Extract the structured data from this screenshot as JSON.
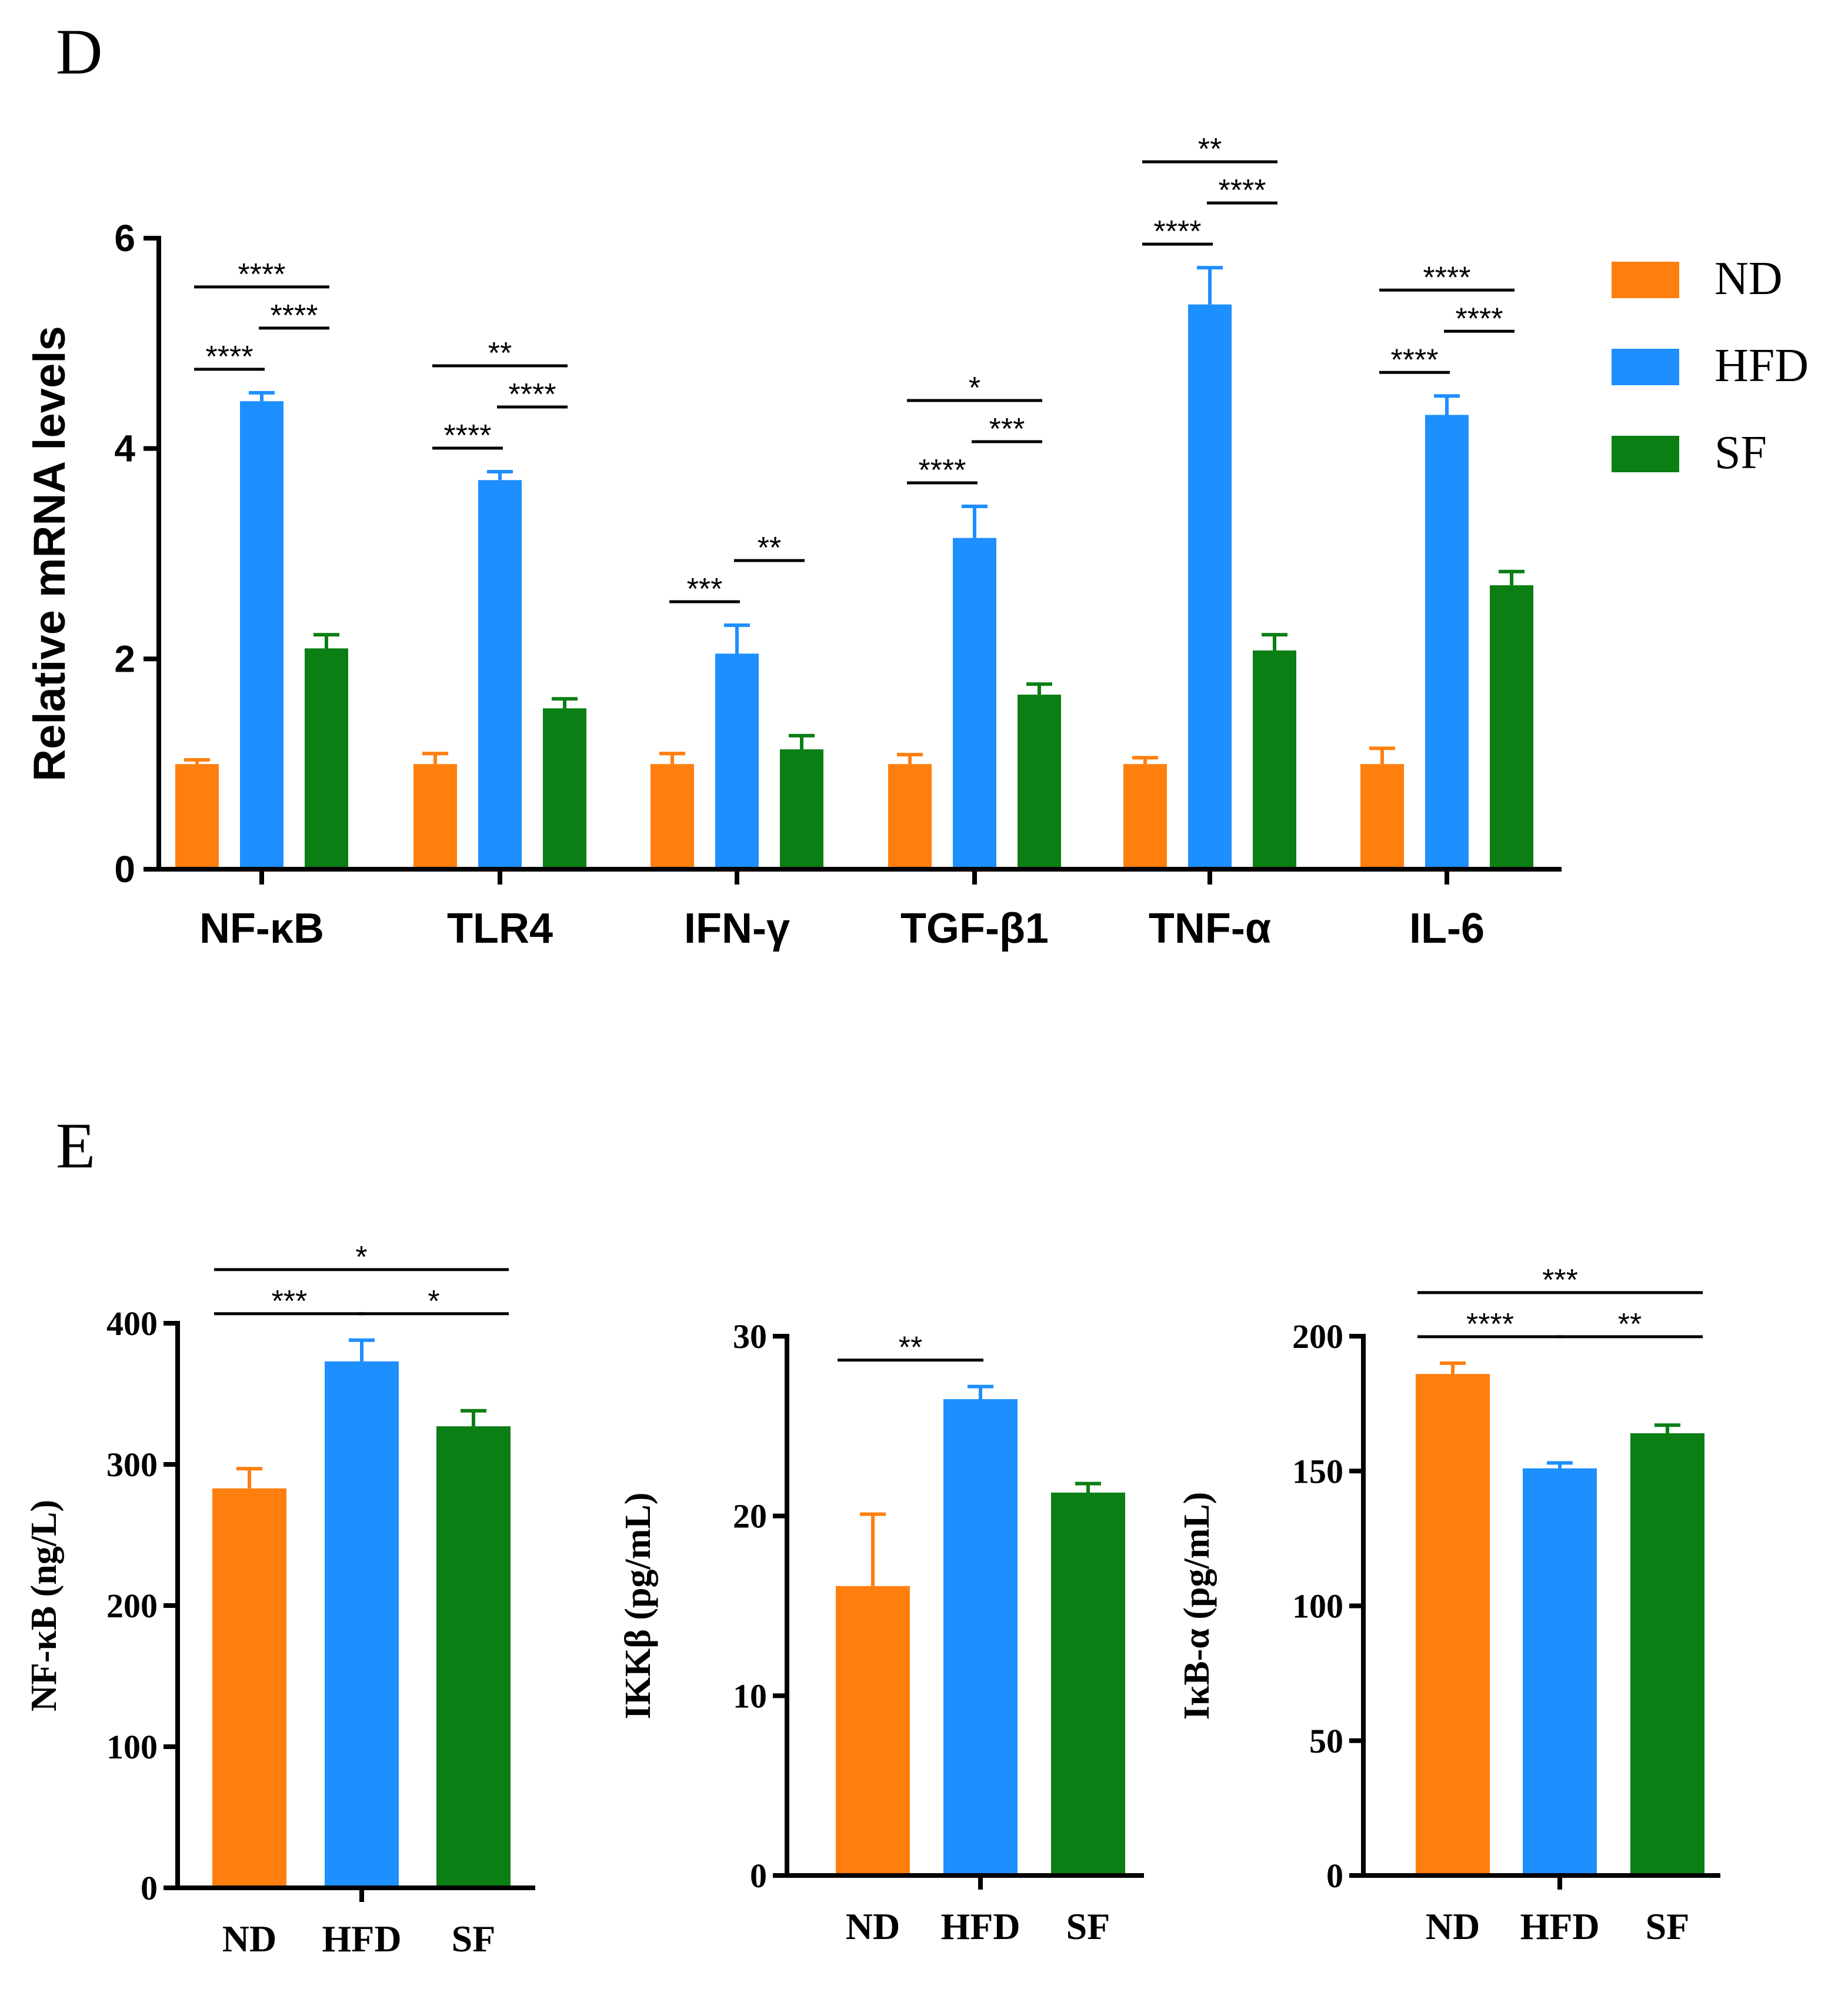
{
  "colors": {
    "ND": "#FF7F0E",
    "HFD": "#1E8FFF",
    "SF": "#0B7E14"
  },
  "chart_data": [
    {
      "panel": "D",
      "type": "bar",
      "ylabel": "Relative mRNA levels",
      "xlabel": "",
      "ylim": [
        0,
        6
      ],
      "yticks": [
        0,
        2,
        4,
        6
      ],
      "categories": [
        "NF-κB",
        "TLR4",
        "IFN-γ",
        "TGF-β1",
        "TNF-α",
        "IL-6"
      ],
      "legend": {
        "position": "top-right",
        "entries": [
          "ND",
          "HFD",
          "SF"
        ]
      },
      "series": [
        {
          "name": "ND",
          "values": [
            1.0,
            1.0,
            1.0,
            1.0,
            1.0,
            1.0
          ],
          "errors": [
            0.04,
            0.1,
            0.1,
            0.09,
            0.06,
            0.15
          ]
        },
        {
          "name": "HFD",
          "values": [
            4.45,
            3.7,
            2.05,
            3.15,
            5.37,
            4.32
          ],
          "errors": [
            0.08,
            0.08,
            0.27,
            0.3,
            0.35,
            0.18
          ]
        },
        {
          "name": "SF",
          "values": [
            2.1,
            1.53,
            1.14,
            1.66,
            2.08,
            2.7
          ],
          "errors": [
            0.13,
            0.09,
            0.13,
            0.1,
            0.15,
            0.13
          ]
        }
      ],
      "significance": [
        {
          "category": 0,
          "from": "ND",
          "to": "HFD",
          "label": "****"
        },
        {
          "category": 0,
          "from": "HFD",
          "to": "SF",
          "label": "****"
        },
        {
          "category": 0,
          "from": "ND",
          "to": "SF",
          "label": "****"
        },
        {
          "category": 1,
          "from": "ND",
          "to": "HFD",
          "label": "****"
        },
        {
          "category": 1,
          "from": "HFD",
          "to": "SF",
          "label": "****"
        },
        {
          "category": 1,
          "from": "ND",
          "to": "SF",
          "label": "**"
        },
        {
          "category": 2,
          "from": "ND",
          "to": "HFD",
          "label": "***"
        },
        {
          "category": 2,
          "from": "HFD",
          "to": "SF",
          "label": "**"
        },
        {
          "category": 3,
          "from": "ND",
          "to": "HFD",
          "label": "****"
        },
        {
          "category": 3,
          "from": "HFD",
          "to": "SF",
          "label": "***"
        },
        {
          "category": 3,
          "from": "ND",
          "to": "SF",
          "label": "*"
        },
        {
          "category": 4,
          "from": "ND",
          "to": "HFD",
          "label": "****"
        },
        {
          "category": 4,
          "from": "HFD",
          "to": "SF",
          "label": "****"
        },
        {
          "category": 4,
          "from": "ND",
          "to": "SF",
          "label": "**"
        },
        {
          "category": 5,
          "from": "ND",
          "to": "HFD",
          "label": "****"
        },
        {
          "category": 5,
          "from": "HFD",
          "to": "SF",
          "label": "****"
        },
        {
          "category": 5,
          "from": "ND",
          "to": "SF",
          "label": "****"
        }
      ]
    },
    {
      "panel": "E",
      "type": "bar",
      "ylabel": "NF-κB (ng/L)",
      "ylim": [
        0,
        400
      ],
      "yticks": [
        0,
        100,
        200,
        300,
        400
      ],
      "categories": [
        "ND",
        "HFD",
        "SF"
      ],
      "values": [
        283,
        373,
        327
      ],
      "errors": [
        14,
        15,
        11
      ],
      "significance": [
        {
          "from": "ND",
          "to": "HFD",
          "label": "***"
        },
        {
          "from": "HFD",
          "to": "SF",
          "label": "*"
        },
        {
          "from": "ND",
          "to": "SF",
          "label": "*"
        }
      ]
    },
    {
      "panel": "E",
      "type": "bar",
      "ylabel": "IKKβ (pg/mL)",
      "ylim": [
        0,
        30
      ],
      "yticks": [
        0,
        10,
        20,
        30
      ],
      "categories": [
        "ND",
        "HFD",
        "SF"
      ],
      "values": [
        16.1,
        26.5,
        21.3
      ],
      "errors": [
        4.0,
        0.7,
        0.5
      ],
      "significance": [
        {
          "from": "ND",
          "to": "HFD",
          "label": "**"
        }
      ]
    },
    {
      "panel": "E",
      "type": "bar",
      "ylabel": "IκB-α (pg/mL)",
      "ylim": [
        0,
        200
      ],
      "yticks": [
        0,
        50,
        100,
        150,
        200
      ],
      "categories": [
        "ND",
        "HFD",
        "SF"
      ],
      "values": [
        186,
        151,
        164
      ],
      "errors": [
        4,
        2,
        3
      ],
      "significance": [
        {
          "from": "ND",
          "to": "HFD",
          "label": "****"
        },
        {
          "from": "HFD",
          "to": "SF",
          "label": "**"
        },
        {
          "from": "ND",
          "to": "SF",
          "label": "***"
        }
      ]
    }
  ]
}
